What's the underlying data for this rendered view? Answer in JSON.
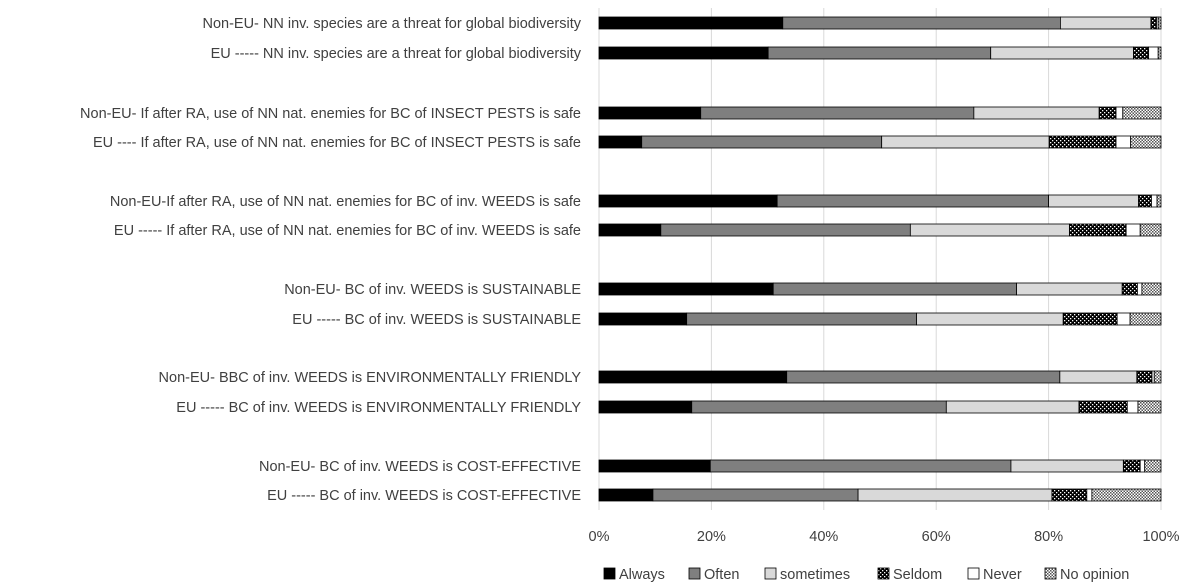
{
  "chart_data": {
    "type": "bar",
    "orientation": "horizontal",
    "stacked": "percent",
    "categories": [
      "Non-EU- NN inv. species are a threat for global biodiversity",
      "EU ----- NN inv. species are a threat for global biodiversity",
      "Non-EU- If after RA, use of NN nat. enemies for BC of INSECT PESTS is safe",
      "EU ---- If after RA, use of NN nat. enemies for BC of INSECT PESTS is safe",
      "Non-EU-If after RA, use of NN nat. enemies for BC of inv. WEEDS is safe",
      "EU ----- If after RA, use of NN nat. enemies for BC of inv. WEEDS is safe",
      "Non-EU- BC of inv. WEEDS is SUSTAINABLE",
      "EU ----- BC of inv. WEEDS is SUSTAINABLE",
      "Non-EU- BBC of inv. WEEDS is ENVIRONMENTALLY FRIENDLY",
      "EU ----- BC of inv. WEEDS is ENVIRONMENTALLY FRIENDLY",
      "Non-EU- BC of inv. WEEDS is COST-EFFECTIVE",
      "EU ----- BC of inv. WEEDS is COST-EFFECTIVE"
    ],
    "series": [
      {
        "name": "Always",
        "color": "#000000",
        "pattern": "solid",
        "values": [
          32.7,
          30.1,
          18.1,
          7.6,
          31.7,
          11.0,
          31.0,
          15.6,
          33.4,
          16.5,
          19.8,
          9.6
        ]
      },
      {
        "name": "Often",
        "color": "#7f7f7f",
        "pattern": "solid",
        "values": [
          49.4,
          39.6,
          48.6,
          42.7,
          48.3,
          44.4,
          43.3,
          40.9,
          48.6,
          45.3,
          53.5,
          36.5
        ]
      },
      {
        "name": "sometimes",
        "color": "#d9d9d9",
        "pattern": "solid",
        "values": [
          16.1,
          25.4,
          22.3,
          29.8,
          16.0,
          28.3,
          18.8,
          26.1,
          13.7,
          23.6,
          20.0,
          34.5
        ]
      },
      {
        "name": "Seldom",
        "color": "#000000",
        "pattern": "dots",
        "values": [
          1.0,
          2.7,
          3.0,
          11.9,
          2.3,
          10.1,
          2.7,
          9.6,
          2.7,
          8.6,
          3.0,
          6.2
        ]
      },
      {
        "name": "Never",
        "color": "#ffffff",
        "pattern": "solid",
        "values": [
          0.3,
          1.7,
          1.2,
          2.6,
          1.0,
          2.5,
          0.8,
          2.3,
          0.4,
          1.9,
          0.8,
          0.9
        ]
      },
      {
        "name": "No opinion",
        "color": "#d0d0d0",
        "pattern": "checker",
        "values": [
          0.5,
          0.5,
          6.8,
          5.4,
          0.7,
          3.7,
          3.4,
          5.5,
          1.2,
          4.1,
          2.9,
          12.3
        ]
      }
    ],
    "group_gaps_after": [
      1,
      3,
      5,
      7,
      9
    ],
    "xlim": [
      0,
      100
    ],
    "ticks": [
      "0%",
      "20%",
      "40%",
      "60%",
      "80%",
      "100%"
    ],
    "grid": true,
    "legend_position": "bottom-right",
    "title": "",
    "xlabel": "",
    "ylabel": ""
  }
}
